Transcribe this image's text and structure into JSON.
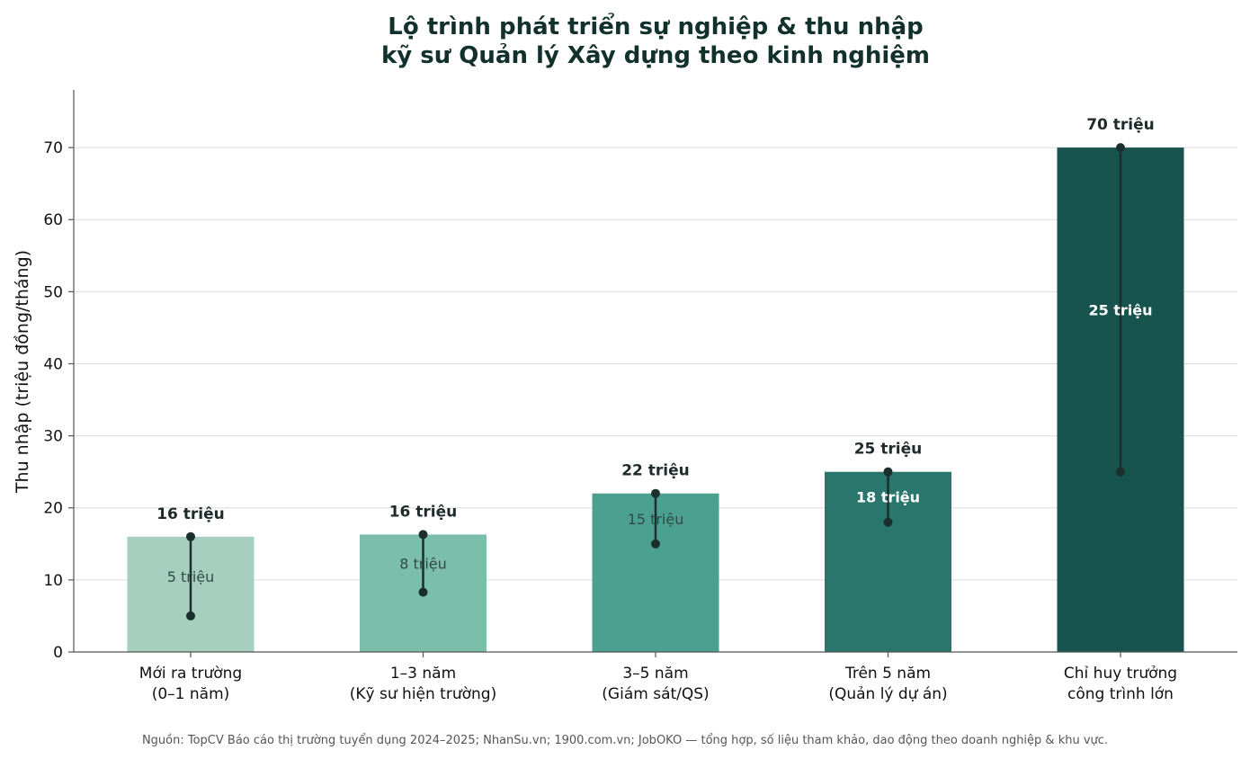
{
  "chart_data": {
    "type": "bar",
    "title_lines": [
      "Lộ trình phát triển sự nghiệp & thu nhập",
      "kỹ sư Quản lý Xây dựng theo kinh nghiệm"
    ],
    "ylabel": "Thu nhập (triệu đồng/tháng)",
    "xlabel": "",
    "ylim": [
      0,
      78
    ],
    "yticks": [
      0,
      10,
      20,
      30,
      40,
      50,
      60,
      70
    ],
    "grid": true,
    "categories": [
      [
        "Mới ra trường",
        "(0–1 năm)"
      ],
      [
        "1–3 năm",
        "(Kỹ sư hiện trường)"
      ],
      [
        "3–5 năm",
        "(Giám sát/QS)"
      ],
      [
        "Trên 5 năm",
        "(Quản lý dự án)"
      ],
      [
        "Chỉ huy trưởng",
        "công trình lớn"
      ]
    ],
    "series": [
      {
        "values": [
          16,
          16.3,
          22,
          25,
          70
        ]
      }
    ],
    "range_min": [
      5,
      8.3,
      15,
      18,
      25
    ],
    "range_max": [
      16,
      16.3,
      22,
      25,
      70
    ],
    "max_labels": [
      "16 triệu",
      "16 triệu",
      "22 triệu",
      "25 triệu",
      "70 triệu"
    ],
    "min_labels": [
      "5 triệu",
      "8 triệu",
      "15 triệu",
      "18 triệu",
      "25 triệu"
    ],
    "bar_colors": [
      "#a7cfbf",
      "#7bbfaa",
      "#4ba08f",
      "#2b766c",
      "#17544e"
    ],
    "min_label_colors": [
      "#2f4a45",
      "#2f4a45",
      "#2f4a45",
      "#ffffff",
      "#ffffff"
    ],
    "range_color": "#1b2f2c",
    "source": "Nguồn: TopCV Báo cáo thị trường tuyển dụng 2024–2025; NhanSu.vn; 1900.com.vn; JobOKO — tổng hợp, số liệu tham khảo, dao động theo doanh nghiệp & khu vực."
  }
}
